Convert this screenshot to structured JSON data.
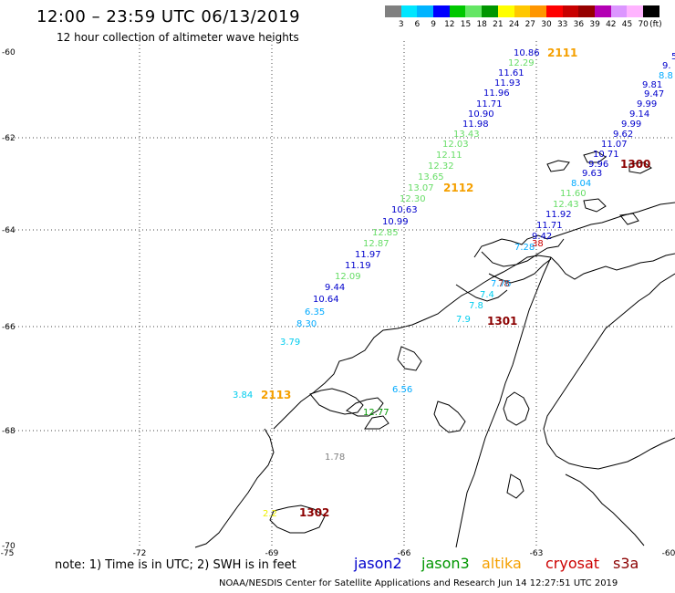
{
  "header": {
    "title": "12:00 – 23:59 UTC 06/13/2019",
    "subtitle": "12 hour collection of altimeter wave heights"
  },
  "colorbar": {
    "colors": [
      "#808080",
      "#00e6ff",
      "#00b4ff",
      "#0000ff",
      "#00c800",
      "#64e664",
      "#009600",
      "#ffff00",
      "#ffc800",
      "#ff9600",
      "#ff0000",
      "#c80000",
      "#960000",
      "#b400b4",
      "#dc96ff",
      "#ffb4ff",
      "#000000"
    ],
    "labels": [
      "3",
      "6",
      "9",
      "12",
      "15",
      "18",
      "21",
      "24",
      "27",
      "30",
      "33",
      "36",
      "39",
      "42",
      "45",
      "70",
      "(ft)"
    ]
  },
  "axes": {
    "x_ticks": [
      "-75",
      "-72",
      "-69",
      "-66",
      "-63",
      "-60"
    ],
    "y_ticks": [
      "-60",
      "-62",
      "-64",
      "-66",
      "-68",
      "-70"
    ]
  },
  "tracks": [
    {
      "label": "2111",
      "color": "#f5a000"
    },
    {
      "label": "2112",
      "color": "#f5a000"
    },
    {
      "label": "2113",
      "color": "#f5a000"
    },
    {
      "label": "1300",
      "color": "#8b0000"
    },
    {
      "label": "1301",
      "color": "#8b0000"
    },
    {
      "label": "1302",
      "color": "#8b0000"
    }
  ],
  "values": [
    {
      "text": "10.86",
      "color": "#0000cc"
    },
    {
      "text": "12.29",
      "color": "#66dd66"
    },
    {
      "text": "11.61",
      "color": "#0000cc"
    },
    {
      "text": "11.93",
      "color": "#0000cc"
    },
    {
      "text": "11.96",
      "color": "#0000cc"
    },
    {
      "text": "11.71",
      "color": "#0000cc"
    },
    {
      "text": "10.90",
      "color": "#0000cc"
    },
    {
      "text": "11.98",
      "color": "#0000cc"
    },
    {
      "text": "13.43",
      "color": "#66dd66"
    },
    {
      "text": "12.03",
      "color": "#66dd66"
    },
    {
      "text": "12.11",
      "color": "#66dd66"
    },
    {
      "text": "12.32",
      "color": "#66dd66"
    },
    {
      "text": "13.65",
      "color": "#66dd66"
    },
    {
      "text": "13.07",
      "color": "#66dd66"
    },
    {
      "text": "12.30",
      "color": "#66dd66"
    },
    {
      "text": "10.63",
      "color": "#0000cc"
    },
    {
      "text": "10.99",
      "color": "#0000cc"
    },
    {
      "text": "12.85",
      "color": "#66dd66"
    },
    {
      "text": "12.87",
      "color": "#66dd66"
    },
    {
      "text": "11.97",
      "color": "#0000cc"
    },
    {
      "text": "11.19",
      "color": "#0000cc"
    },
    {
      "text": "12.09",
      "color": "#66dd66"
    },
    {
      "text": "9.44",
      "color": "#0000cc"
    },
    {
      "text": "10.64",
      "color": "#0000cc"
    },
    {
      "text": "6.35",
      "color": "#00aaff"
    },
    {
      "text": "8.30",
      "color": "#00aaff"
    },
    {
      "text": "3.79",
      "color": "#00ccee"
    },
    {
      "text": "3.84",
      "color": "#00ccee"
    },
    {
      "text": "6.56",
      "color": "#00aaff"
    },
    {
      "text": "12.77",
      "color": "#009600"
    },
    {
      "text": "1.78",
      "color": "#808080"
    },
    {
      "text": "2.2",
      "color": "#eeee00"
    },
    {
      "text": "9.81",
      "color": "#0000cc"
    },
    {
      "text": "9.47",
      "color": "#0000cc"
    },
    {
      "text": "9.99",
      "color": "#0000cc"
    },
    {
      "text": "9.14",
      "color": "#0000cc"
    },
    {
      "text": "9.99",
      "color": "#0000cc"
    },
    {
      "text": "9.62",
      "color": "#0000cc"
    },
    {
      "text": "11.07",
      "color": "#0000cc"
    },
    {
      "text": "10.71",
      "color": "#0000cc"
    },
    {
      "text": "9.96",
      "color": "#0000cc"
    },
    {
      "text": "9.63",
      "color": "#0000cc"
    },
    {
      "text": "8.04",
      "color": "#00aaff"
    },
    {
      "text": "11.60",
      "color": "#66dd66"
    },
    {
      "text": "12.43",
      "color": "#66dd66"
    },
    {
      "text": "11.92",
      "color": "#0000cc"
    },
    {
      "text": "11.71",
      "color": "#0000cc"
    },
    {
      "text": "9.42",
      "color": "#0000cc"
    },
    {
      "text": "7.28",
      "color": "#00aaff"
    },
    {
      "text": "7.76",
      "color": "#00aaff"
    },
    {
      "text": "7.4",
      "color": "#00ccee"
    },
    {
      "text": "7.8",
      "color": "#00ccee"
    },
    {
      "text": "7.9",
      "color": "#00ccee"
    },
    {
      "text": "38",
      "color": "#cc0000"
    },
    {
      "text": "78",
      "color": "#993333"
    },
    {
      "text": "9.",
      "color": "#0000cc"
    },
    {
      "text": "8.8",
      "color": "#00aaff"
    },
    {
      "text": "5",
      "color": "#0000cc"
    }
  ],
  "footer": {
    "note": "note:  1) Time is in UTC;  2) SWH is in feet",
    "satellites": [
      {
        "name": "jason2",
        "color": "#0000cc"
      },
      {
        "name": "jason3",
        "color": "#009600"
      },
      {
        "name": "altika",
        "color": "#f5a000"
      },
      {
        "name": "cryosat",
        "color": "#cc0000"
      },
      {
        "name": "s3a",
        "color": "#8b0000"
      }
    ],
    "credit": "NOAA/NESDIS Center for Satellite Applications and Research     Jun 14 12:27:51 UTC 2019"
  }
}
